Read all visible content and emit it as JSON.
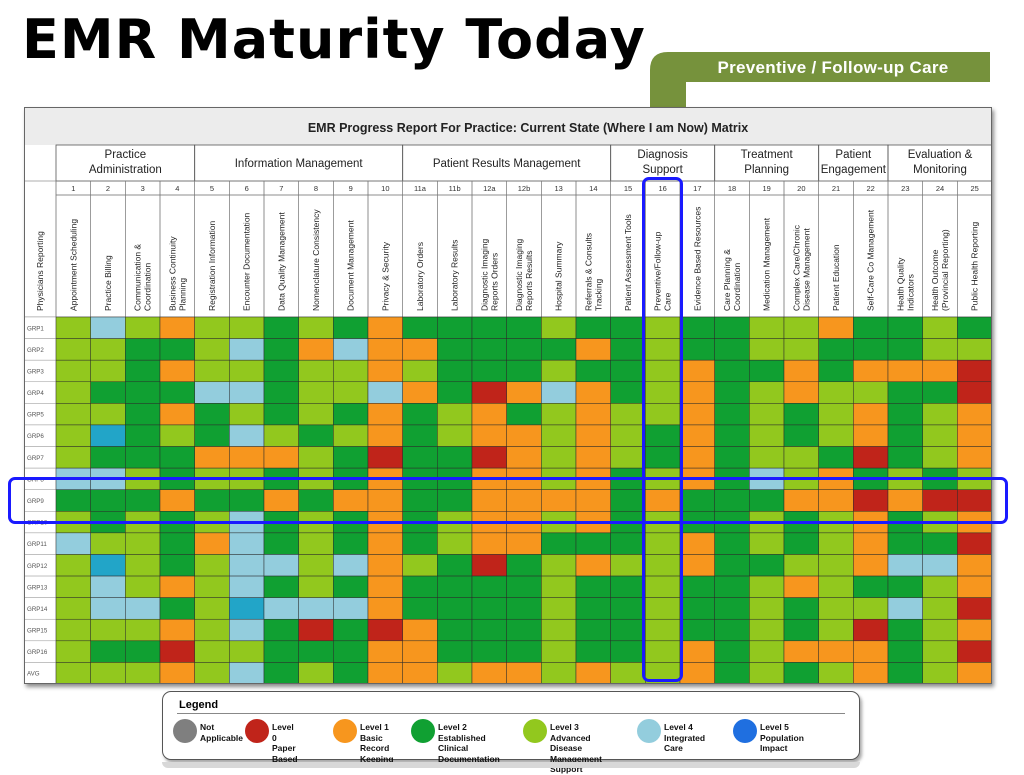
{
  "slide": {
    "title": "EMR Maturity Today",
    "callout": "Preventive / Follow-up Care"
  },
  "colors": {
    "level_na": "#7f7f7f",
    "level_0": "#c0241a",
    "level_1": "#f7961e",
    "level_2": "#10a032",
    "level_3": "#92c81e",
    "level_4": "#93cddd",
    "level_4b": "#22a5c8",
    "level_5": "#1f6fe0",
    "highlight": "#1a1aff",
    "callout": "#76923c"
  },
  "chart_data": {
    "type": "heatmap",
    "title": "EMR Progress Report For Practice:  Current State (Where I am Now) Matrix",
    "row_header": "Physicians Reporting",
    "groups": [
      {
        "name": "Practice Administration",
        "span": 4
      },
      {
        "name": "Information Management",
        "span": 6
      },
      {
        "name": "Patient Results Management",
        "span": 6
      },
      {
        "name": "Diagnosis Support",
        "span": 3
      },
      {
        "name": "Treatment Planning",
        "span": 3
      },
      {
        "name": "Patient Engagement",
        "span": 2
      },
      {
        "name": "Evaluation & Monitoring",
        "span": 3
      }
    ],
    "columns": [
      {
        "num": "1",
        "name": "Appointment Scheduling"
      },
      {
        "num": "2",
        "name": "Practice Billing"
      },
      {
        "num": "3",
        "name": "Communication & Coordination"
      },
      {
        "num": "4",
        "name": "Business Continuity Planning"
      },
      {
        "num": "5",
        "name": "Registration Information"
      },
      {
        "num": "6",
        "name": "Encounter Documentation"
      },
      {
        "num": "7",
        "name": "Data Quality Management"
      },
      {
        "num": "8",
        "name": "Nomenclature Consistency"
      },
      {
        "num": "9",
        "name": "Document Management"
      },
      {
        "num": "10",
        "name": "Privacy & Security"
      },
      {
        "num": "11a",
        "name": "Laboratory Orders"
      },
      {
        "num": "11b",
        "name": "Laboratory Results"
      },
      {
        "num": "12a",
        "name": "Diagnostic Imaging Reports Orders"
      },
      {
        "num": "12b",
        "name": "Diagnostic Imaging Reports Results"
      },
      {
        "num": "13",
        "name": "Hospital Summary"
      },
      {
        "num": "14",
        "name": "Referrals & Consults Tracking"
      },
      {
        "num": "15",
        "name": "Patient Assessment Tools"
      },
      {
        "num": "16",
        "name": "Preventive/Follow-up Care"
      },
      {
        "num": "17",
        "name": "Evidence Based Resources"
      },
      {
        "num": "18",
        "name": "Care Planning & Coordination"
      },
      {
        "num": "19",
        "name": "Medication Management"
      },
      {
        "num": "20",
        "name": "Complex Care/Chronic Disease Management"
      },
      {
        "num": "21",
        "name": "Patient Education"
      },
      {
        "num": "22",
        "name": "Self-Care Co Management"
      },
      {
        "num": "23",
        "name": "Health Quality Indicators"
      },
      {
        "num": "24",
        "name": "Health Outcome (Provincial Reporting)"
      },
      {
        "num": "25",
        "name": "Public Health Reporting"
      }
    ],
    "rows": [
      "GRP1",
      "GRP2",
      "GRP3",
      "GRP4",
      "GRP5",
      "GRP6",
      "GRP7",
      "GRP8",
      "GRP9",
      "GRP10",
      "GRP11",
      "GRP12",
      "GRP13",
      "GRP14",
      "GRP15",
      "GRP16",
      "AVG"
    ],
    "levels": [
      [
        3,
        4,
        3,
        1,
        3,
        3,
        2,
        3,
        2,
        1,
        2,
        2,
        2,
        2,
        3,
        2,
        2,
        3,
        2,
        2,
        3,
        3,
        1,
        2,
        2,
        3,
        2
      ],
      [
        3,
        3,
        2,
        2,
        3,
        4,
        2,
        1,
        4,
        1,
        1,
        2,
        2,
        2,
        2,
        1,
        2,
        3,
        2,
        2,
        3,
        3,
        2,
        2,
        2,
        3,
        3
      ],
      [
        3,
        3,
        2,
        1,
        3,
        3,
        2,
        3,
        3,
        1,
        3,
        2,
        2,
        2,
        3,
        2,
        2,
        3,
        1,
        2,
        2,
        1,
        2,
        1,
        1,
        1,
        0
      ],
      [
        3,
        2,
        2,
        2,
        4,
        4,
        2,
        3,
        3,
        4,
        1,
        2,
        0,
        1,
        4,
        1,
        2,
        3,
        1,
        2,
        3,
        1,
        3,
        3,
        2,
        2,
        0
      ],
      [
        3,
        3,
        2,
        1,
        2,
        3,
        2,
        3,
        2,
        1,
        2,
        3,
        1,
        2,
        3,
        1,
        3,
        3,
        1,
        2,
        3,
        2,
        3,
        1,
        2,
        3,
        1
      ],
      [
        3,
        5,
        2,
        3,
        2,
        4,
        3,
        2,
        3,
        1,
        2,
        3,
        1,
        1,
        3,
        1,
        3,
        2,
        1,
        2,
        3,
        2,
        3,
        1,
        2,
        3,
        1
      ],
      [
        3,
        2,
        2,
        2,
        1,
        1,
        1,
        3,
        2,
        0,
        2,
        2,
        0,
        1,
        3,
        1,
        3,
        2,
        1,
        2,
        3,
        3,
        2,
        0,
        2,
        3,
        1
      ],
      [
        4,
        4,
        3,
        2,
        3,
        3,
        2,
        3,
        2,
        1,
        2,
        2,
        1,
        1,
        3,
        1,
        2,
        3,
        1,
        2,
        4,
        3,
        1,
        2,
        3,
        2,
        3
      ],
      [
        2,
        2,
        2,
        1,
        2,
        2,
        1,
        2,
        1,
        1,
        2,
        2,
        1,
        1,
        1,
        1,
        2,
        1,
        2,
        2,
        2,
        1,
        1,
        0,
        1,
        0,
        0
      ],
      [
        3,
        2,
        3,
        2,
        3,
        4,
        2,
        3,
        2,
        1,
        2,
        3,
        1,
        1,
        3,
        1,
        2,
        3,
        2,
        2,
        3,
        2,
        3,
        1,
        2,
        3,
        1
      ],
      [
        4,
        3,
        3,
        2,
        1,
        4,
        2,
        3,
        2,
        1,
        2,
        3,
        1,
        1,
        2,
        2,
        2,
        3,
        1,
        2,
        3,
        2,
        3,
        1,
        2,
        2,
        0
      ],
      [
        3,
        5,
        3,
        2,
        3,
        4,
        4,
        3,
        4,
        1,
        3,
        2,
        0,
        2,
        3,
        1,
        3,
        3,
        1,
        2,
        2,
        3,
        3,
        1,
        4,
        4,
        1
      ],
      [
        3,
        4,
        3,
        1,
        3,
        4,
        2,
        3,
        2,
        1,
        2,
        2,
        2,
        2,
        3,
        2,
        2,
        3,
        2,
        2,
        3,
        1,
        3,
        2,
        2,
        3,
        1
      ],
      [
        3,
        4,
        4,
        2,
        3,
        5,
        4,
        4,
        4,
        1,
        2,
        2,
        2,
        2,
        3,
        2,
        2,
        3,
        2,
        2,
        3,
        2,
        3,
        3,
        4,
        3,
        0
      ],
      [
        3,
        3,
        3,
        1,
        3,
        4,
        2,
        0,
        2,
        0,
        1,
        2,
        2,
        2,
        3,
        2,
        2,
        3,
        2,
        2,
        3,
        2,
        3,
        0,
        2,
        3,
        1
      ],
      [
        3,
        2,
        2,
        0,
        3,
        3,
        2,
        2,
        2,
        1,
        1,
        2,
        2,
        2,
        3,
        2,
        2,
        3,
        1,
        2,
        3,
        1,
        1,
        1,
        2,
        3,
        0
      ],
      [
        3,
        3,
        3,
        1,
        3,
        4,
        2,
        3,
        2,
        1,
        1,
        3,
        1,
        1,
        3,
        1,
        3,
        3,
        1,
        2,
        3,
        2,
        3,
        1,
        2,
        3,
        1
      ]
    ],
    "highlighted_row": "GRP9",
    "highlighted_column": "16",
    "legend": [
      {
        "level": "na",
        "label": "Not\nApplicable",
        "color": "#7f7f7f"
      },
      {
        "level": "0",
        "label": "Level 0\nPaper Based",
        "color": "#c0241a"
      },
      {
        "level": "1",
        "label": "Level 1\nBasic Record\nKeeping",
        "color": "#f7961e"
      },
      {
        "level": "2",
        "label": "Level 2\nEstablished  Clinical\nDocumentation",
        "color": "#10a032"
      },
      {
        "level": "3",
        "label": "Level 3\nAdvanced Disease\nManagement  Support",
        "color": "#92c81e"
      },
      {
        "level": "4",
        "label": "Level  4\nIntegrated Care",
        "color": "#93cddd"
      },
      {
        "level": "5",
        "label": "Level  5\nPopulation Impact",
        "color": "#1f6fe0"
      }
    ]
  },
  "legend_title": "Legend"
}
